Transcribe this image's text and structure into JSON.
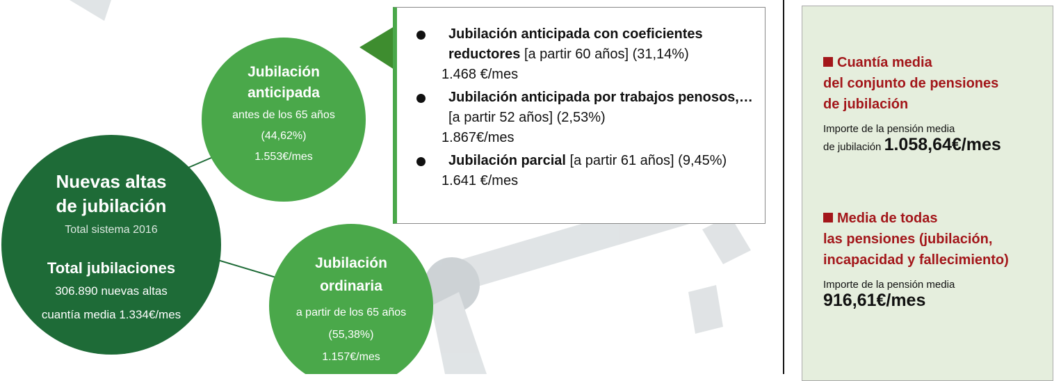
{
  "main": {
    "title_lines": [
      "Nuevas altas",
      "de jubilación"
    ],
    "subtitle": "Total sistema 2016",
    "total_title": "Total jubilaciones",
    "total_lines": [
      "306.890 nuevas altas",
      "cuantía media 1.334€/mes"
    ]
  },
  "anticipada": {
    "title_lines": [
      "Jubilación",
      "anticipada"
    ],
    "lines": [
      "antes de los 65 años",
      "(44,62%)",
      "1.553€/mes"
    ]
  },
  "ordinaria": {
    "title_lines": [
      "Jubilación",
      "ordinaria"
    ],
    "lines": [
      "a partir de los 65 años",
      "(55,38%)",
      "1.157€/mes"
    ]
  },
  "callout": {
    "items": [
      {
        "bold": "Jubilación anticipada con coeficientes reductores",
        "detail": "[a partir 60 años] (31,14%)",
        "amount": "1.468 €/mes"
      },
      {
        "bold": "Jubilación anticipada por trabajos penosos,…",
        "detail": "[a partir 52 años] (2,53%)",
        "amount": "1.867€/mes"
      },
      {
        "bold": "Jubilación parcial",
        "detail": "[a partir 61 años] (9,45%)",
        "amount": "1.641 €/mes"
      }
    ]
  },
  "panel": {
    "sections": [
      {
        "heading_lines": [
          "Cuantía media",
          "del conjunto de pensiones",
          "de jubilación"
        ],
        "label_lines": [
          "Importe de la pensión media",
          "de jubilación"
        ],
        "value": "1.058,64€/mes"
      },
      {
        "heading_lines": [
          "Media de todas",
          "las pensiones (jubilación,",
          "incapacidad y fallecimiento)"
        ],
        "label_lines": [
          "Importe de la pensión media"
        ],
        "value": "916,61€/mes"
      }
    ]
  }
}
